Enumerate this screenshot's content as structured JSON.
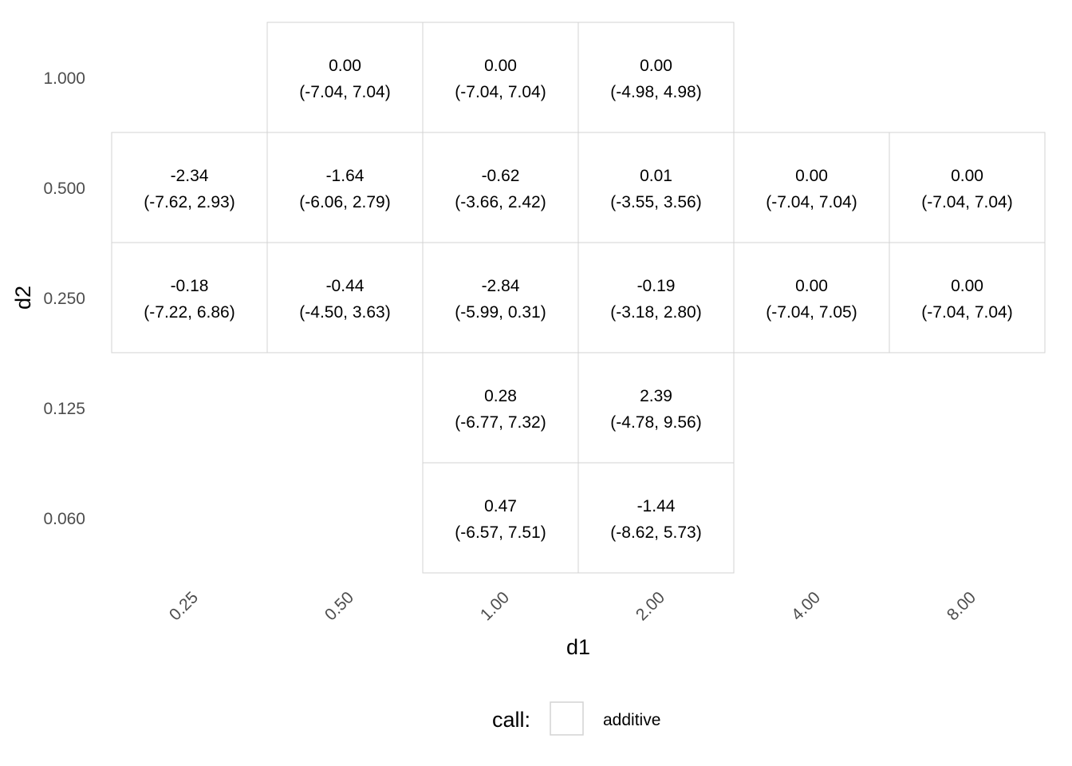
{
  "chart_data": {
    "type": "heatmap",
    "xlabel": "d1",
    "ylabel": "d2",
    "x_categories": [
      "0.25",
      "0.50",
      "1.00",
      "2.00",
      "4.00",
      "8.00"
    ],
    "y_categories": [
      "1.000",
      "0.500",
      "0.250",
      "0.125",
      "0.060"
    ],
    "cells": [
      {
        "d1": "0.50",
        "d2": "1.000",
        "estimate": "0.00",
        "interval": "(-7.04, 7.04)"
      },
      {
        "d1": "1.00",
        "d2": "1.000",
        "estimate": "0.00",
        "interval": "(-7.04, 7.04)"
      },
      {
        "d1": "2.00",
        "d2": "1.000",
        "estimate": "0.00",
        "interval": "(-4.98, 4.98)"
      },
      {
        "d1": "0.25",
        "d2": "0.500",
        "estimate": "-2.34",
        "interval": "(-7.62, 2.93)"
      },
      {
        "d1": "0.50",
        "d2": "0.500",
        "estimate": "-1.64",
        "interval": "(-6.06, 2.79)"
      },
      {
        "d1": "1.00",
        "d2": "0.500",
        "estimate": "-0.62",
        "interval": "(-3.66, 2.42)"
      },
      {
        "d1": "2.00",
        "d2": "0.500",
        "estimate": "0.01",
        "interval": "(-3.55, 3.56)"
      },
      {
        "d1": "4.00",
        "d2": "0.500",
        "estimate": "0.00",
        "interval": "(-7.04, 7.04)"
      },
      {
        "d1": "8.00",
        "d2": "0.500",
        "estimate": "0.00",
        "interval": "(-7.04, 7.04)"
      },
      {
        "d1": "0.25",
        "d2": "0.250",
        "estimate": "-0.18",
        "interval": "(-7.22, 6.86)"
      },
      {
        "d1": "0.50",
        "d2": "0.250",
        "estimate": "-0.44",
        "interval": "(-4.50, 3.63)"
      },
      {
        "d1": "1.00",
        "d2": "0.250",
        "estimate": "-2.84",
        "interval": "(-5.99, 0.31)"
      },
      {
        "d1": "2.00",
        "d2": "0.250",
        "estimate": "-0.19",
        "interval": "(-3.18, 2.80)"
      },
      {
        "d1": "4.00",
        "d2": "0.250",
        "estimate": "0.00",
        "interval": "(-7.04, 7.05)"
      },
      {
        "d1": "8.00",
        "d2": "0.250",
        "estimate": "0.00",
        "interval": "(-7.04, 7.04)"
      },
      {
        "d1": "1.00",
        "d2": "0.125",
        "estimate": "0.28",
        "interval": "(-6.77, 7.32)"
      },
      {
        "d1": "2.00",
        "d2": "0.125",
        "estimate": "2.39",
        "interval": "(-4.78, 9.56)"
      },
      {
        "d1": "1.00",
        "d2": "0.060",
        "estimate": "0.47",
        "interval": "(-6.57, 7.51)"
      },
      {
        "d1": "2.00",
        "d2": "0.060",
        "estimate": "-1.44",
        "interval": "(-8.62, 5.73)"
      }
    ],
    "fill_color": "#ffffff",
    "border_color": "#d3d3d3",
    "grid": false,
    "legend": {
      "placement": "bottom",
      "title": "call:",
      "items": [
        {
          "label": "additive",
          "fill": "#ffffff",
          "border": "#d3d3d3"
        }
      ]
    }
  }
}
